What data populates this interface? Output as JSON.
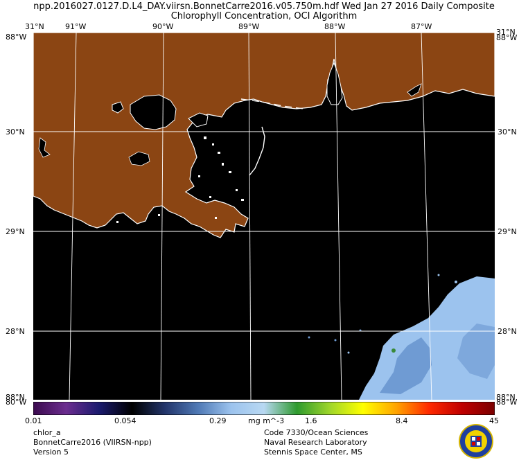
{
  "header": {
    "title_line1": "npp.2016027.0127.D.L4_DAY.viirsn.BonnetCarre2016.v05.750m.hdf    Wed Jan 27 2016 Daily Composite",
    "title_line2": "Chlorophyll Concentration, OCI Algorithm"
  },
  "map": {
    "lon_labels": [
      "91°W",
      "90°W",
      "89°W",
      "88°W",
      "87°W"
    ],
    "lat_labels": [
      "30°N",
      "29°N",
      "28°N"
    ],
    "corner_labels": {
      "top_left_lat": "31°N",
      "top_left_lon": "88°W",
      "top_right_lat": "31°N",
      "top_right_lon": "88°W",
      "bottom_left_lat": "88°N",
      "bottom_left_lon": "80°W",
      "bottom_right_lat": "88°N",
      "bottom_right_lon": "88°W"
    },
    "colors": {
      "land": "#8b4513",
      "water_nodata": "#000000",
      "coast": "#ffffff",
      "chlorophyll_low": "#6f9bd3",
      "chlorophyll_mid": "#9cc3ee",
      "grid": "#ffffff"
    }
  },
  "colorbar": {
    "ticks": [
      "0.01",
      "0.054",
      "0.29",
      "1.6",
      "8.4",
      "45"
    ],
    "units": "mg m^-3",
    "stops": [
      "#3b0a4e",
      "#6b2d8f",
      "#1a1a6e",
      "#000000",
      "#23356b",
      "#4f79b5",
      "#9cc3ee",
      "#b8d8f2",
      "#2e9a2e",
      "#9fd62a",
      "#ffff00",
      "#ffa500",
      "#ff2a00",
      "#c00000",
      "#7a0000"
    ]
  },
  "footer": {
    "left": [
      "chlor_a",
      "BonnetCarre2016 (VIIRSN-npp)",
      "Version 5"
    ],
    "right": [
      "Code 7330/Ocean Sciences",
      "Naval Research Laboratory",
      "Stennis Space Center, MS"
    ],
    "logo_icon": "nrl-seal-icon"
  }
}
